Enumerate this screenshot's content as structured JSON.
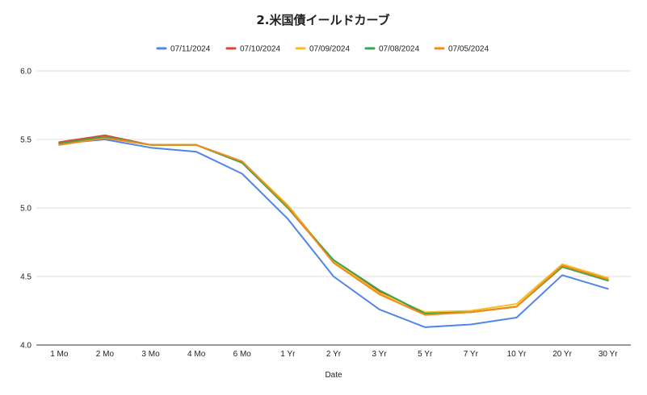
{
  "chart_data": {
    "type": "line",
    "title": "2.米国債イールドカーブ",
    "xlabel": "Date",
    "ylabel": "",
    "ylim": [
      4.0,
      6.0
    ],
    "yticks": [
      "4.0",
      "4.5",
      "5.0",
      "5.5",
      "6.0"
    ],
    "grid": true,
    "legend_position": "top",
    "categories": [
      "1 Mo",
      "2 Mo",
      "3 Mo",
      "4 Mo",
      "6 Mo",
      "1 Yr",
      "2 Yr",
      "3 Yr",
      "5 Yr",
      "7 Yr",
      "10 Yr",
      "20 Yr",
      "30 Yr"
    ],
    "series": [
      {
        "name": "07/11/2024",
        "color": "#4f86e8",
        "values": [
          5.47,
          5.5,
          5.44,
          5.41,
          5.25,
          4.92,
          4.5,
          4.26,
          4.13,
          4.15,
          4.2,
          4.51,
          4.41
        ]
      },
      {
        "name": "07/10/2024",
        "color": "#d94633",
        "values": [
          5.48,
          5.53,
          5.46,
          5.46,
          5.33,
          5.0,
          4.61,
          4.39,
          4.23,
          4.24,
          4.28,
          4.57,
          4.47
        ]
      },
      {
        "name": "07/09/2024",
        "color": "#f4c022",
        "values": [
          5.47,
          5.52,
          5.46,
          5.46,
          5.34,
          5.02,
          4.61,
          4.38,
          4.24,
          4.25,
          4.3,
          4.59,
          4.49
        ]
      },
      {
        "name": "07/08/2024",
        "color": "#3fa34d",
        "values": [
          5.47,
          5.52,
          5.46,
          5.46,
          5.33,
          5.0,
          4.62,
          4.4,
          4.23,
          4.24,
          4.28,
          4.57,
          4.47
        ]
      },
      {
        "name": "07/05/2024",
        "color": "#f28a1d",
        "values": [
          5.46,
          5.51,
          5.46,
          5.46,
          5.34,
          5.01,
          4.6,
          4.37,
          4.22,
          4.24,
          4.28,
          4.58,
          4.48
        ]
      }
    ]
  }
}
